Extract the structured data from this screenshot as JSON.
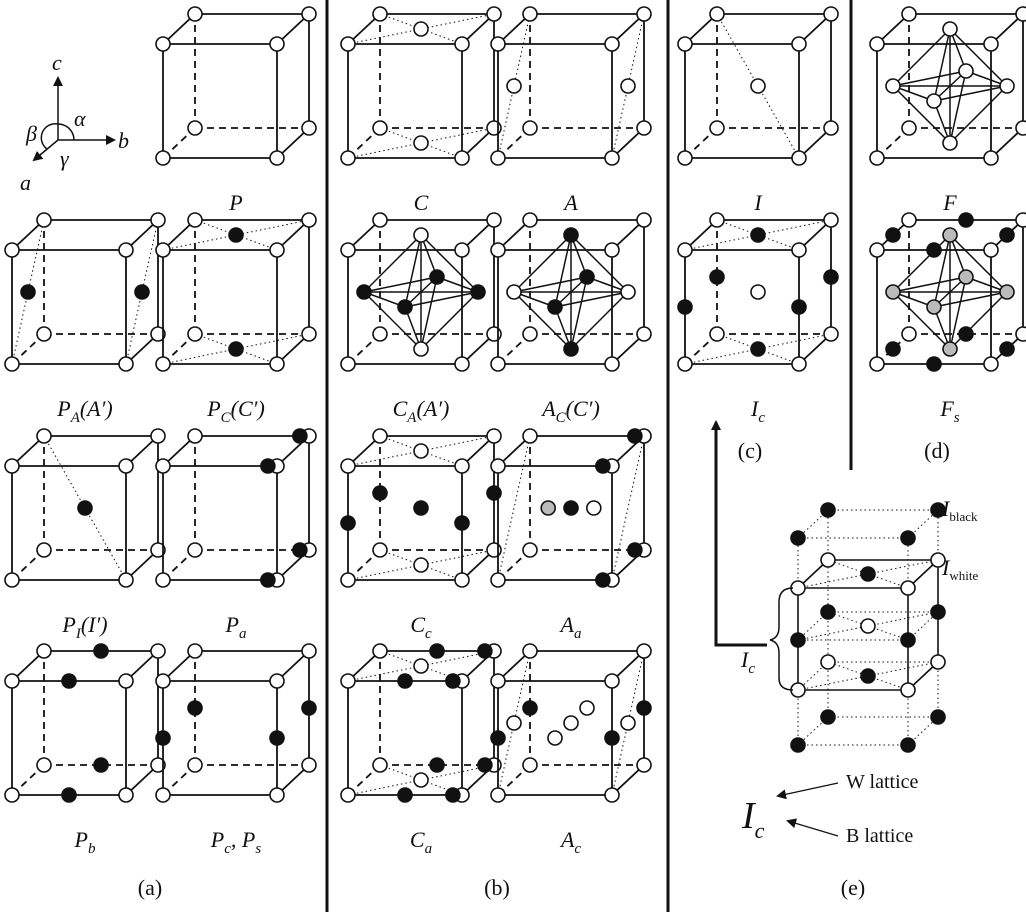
{
  "axes": {
    "a": "a",
    "b": "b",
    "c": "c",
    "alpha": "α",
    "beta": "β",
    "gamma": "γ"
  },
  "colors": {
    "line": "#111111",
    "open_fill": "#ffffff",
    "filled": "#111111",
    "grey": "#bbbbbb"
  },
  "cells": [
    {
      "id": "P",
      "main": "P",
      "sub": "",
      "suffix": ""
    },
    {
      "id": "PA",
      "main": "P",
      "sub": "A",
      "suffix": "(A′)"
    },
    {
      "id": "PC",
      "main": "P",
      "sub": "C",
      "suffix": "(C′)"
    },
    {
      "id": "PI",
      "main": "P",
      "sub": "I",
      "suffix": "(I′)"
    },
    {
      "id": "Pa",
      "main": "P",
      "sub": "a",
      "suffix": ""
    },
    {
      "id": "Pb",
      "main": "P",
      "sub": "b",
      "suffix": ""
    },
    {
      "id": "Pc",
      "main": "P",
      "sub": "c",
      "suffix": ", P",
      "sub2": "s"
    },
    {
      "id": "C",
      "main": "C",
      "sub": "",
      "suffix": ""
    },
    {
      "id": "A",
      "main": "A",
      "sub": "",
      "suffix": ""
    },
    {
      "id": "CA",
      "main": "C",
      "sub": "A",
      "suffix": "(A′)"
    },
    {
      "id": "AC",
      "main": "A",
      "sub": "C",
      "suffix": "(C′)"
    },
    {
      "id": "Cc",
      "main": "C",
      "sub": "c",
      "suffix": ""
    },
    {
      "id": "Aa",
      "main": "A",
      "sub": "a",
      "suffix": ""
    },
    {
      "id": "Ca",
      "main": "C",
      "sub": "a",
      "suffix": ""
    },
    {
      "id": "Ac",
      "main": "A",
      "sub": "c",
      "suffix": ""
    },
    {
      "id": "I",
      "main": "I",
      "sub": "",
      "suffix": ""
    },
    {
      "id": "Ic",
      "main": "I",
      "sub": "c",
      "suffix": ""
    },
    {
      "id": "F",
      "main": "F",
      "sub": "",
      "suffix": ""
    },
    {
      "id": "Fs",
      "main": "F",
      "sub": "s",
      "suffix": ""
    }
  ],
  "panels": {
    "a": "(a)",
    "b": "(b)",
    "c": "(c)",
    "d": "(d)",
    "e": "(e)"
  },
  "panel_e": {
    "i_black": "I",
    "i_black_sub": "black",
    "i_white": "I",
    "i_white_sub": "white",
    "ic": "I",
    "ic_sub": "c",
    "w_lattice": "W lattice",
    "b_lattice": "B lattice",
    "ic_big": "I",
    "ic_big_sub": "c"
  }
}
